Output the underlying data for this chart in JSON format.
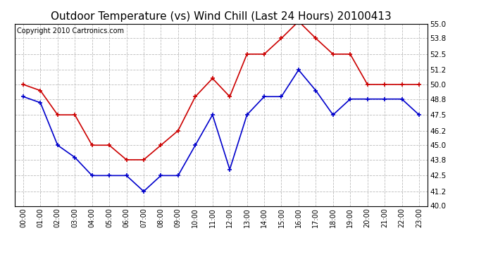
{
  "title": "Outdoor Temperature (vs) Wind Chill (Last 24 Hours) 20100413",
  "copyright": "Copyright 2010 Cartronics.com",
  "hours": [
    "00:00",
    "01:00",
    "02:00",
    "03:00",
    "04:00",
    "05:00",
    "06:00",
    "07:00",
    "08:00",
    "09:00",
    "10:00",
    "11:00",
    "12:00",
    "13:00",
    "14:00",
    "15:00",
    "16:00",
    "17:00",
    "18:00",
    "19:00",
    "20:00",
    "21:00",
    "22:00",
    "23:00"
  ],
  "outdoor_temp": [
    49.0,
    48.5,
    45.0,
    44.0,
    42.5,
    42.5,
    42.5,
    41.2,
    42.5,
    42.5,
    45.0,
    47.5,
    43.0,
    47.5,
    49.0,
    49.0,
    51.2,
    49.5,
    47.5,
    48.8,
    48.8,
    48.8,
    48.8,
    47.5
  ],
  "wind_chill": [
    50.0,
    49.5,
    47.5,
    47.5,
    45.0,
    45.0,
    43.8,
    43.8,
    45.0,
    46.2,
    49.0,
    50.5,
    49.0,
    52.5,
    52.5,
    53.8,
    55.2,
    53.8,
    52.5,
    52.5,
    50.0,
    50.0,
    50.0,
    50.0
  ],
  "temp_color": "#0000cc",
  "windchill_color": "#cc0000",
  "ylim": [
    40.0,
    55.0
  ],
  "yticks": [
    40.0,
    41.2,
    42.5,
    43.8,
    45.0,
    46.2,
    47.5,
    48.8,
    50.0,
    51.2,
    52.5,
    53.8,
    55.0
  ],
  "fig_bg": "#ffffff",
  "plot_bg": "#ffffff",
  "grid_color": "#bbbbbb",
  "title_fontsize": 11,
  "copyright_fontsize": 7,
  "figwidth": 6.9,
  "figheight": 3.75,
  "dpi": 100
}
